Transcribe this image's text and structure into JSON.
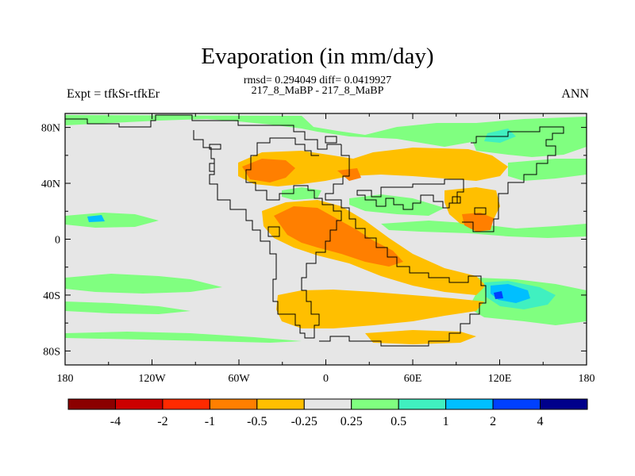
{
  "title": "Evaporation (in mm/day)",
  "stats_line": "rmsd= 0.294049 diff= 0.0419927",
  "cases_line": "217_8_MaBP - 217_8_MaBP",
  "expt_label": "Expt = tfkSr-tfkEr",
  "period_label": "ANN",
  "chart_data": {
    "type": "heatmap",
    "projection": "cylindrical-equidistant",
    "lon_range": [
      -180,
      180
    ],
    "lat_range": [
      -90,
      90
    ],
    "x_ticks": [
      "180",
      "120W",
      "60W",
      "0",
      "60E",
      "120E",
      "180"
    ],
    "y_ticks": [
      "80N",
      "40N",
      "0",
      "40S",
      "80S"
    ],
    "background_color": "#e6e6e6",
    "colorbar": {
      "labels": [
        "-4",
        "-2",
        "-1",
        "-0.5",
        "-0.25",
        "0.25",
        "0.5",
        "1",
        "2",
        "4"
      ],
      "colors": [
        "#8b0000",
        "#cc0000",
        "#ff2a00",
        "#ff7f00",
        "#ffbf00",
        "#e6e6e6",
        "#80ff80",
        "#40f0c0",
        "#00bfff",
        "#0040ff",
        "#00008b"
      ]
    }
  }
}
